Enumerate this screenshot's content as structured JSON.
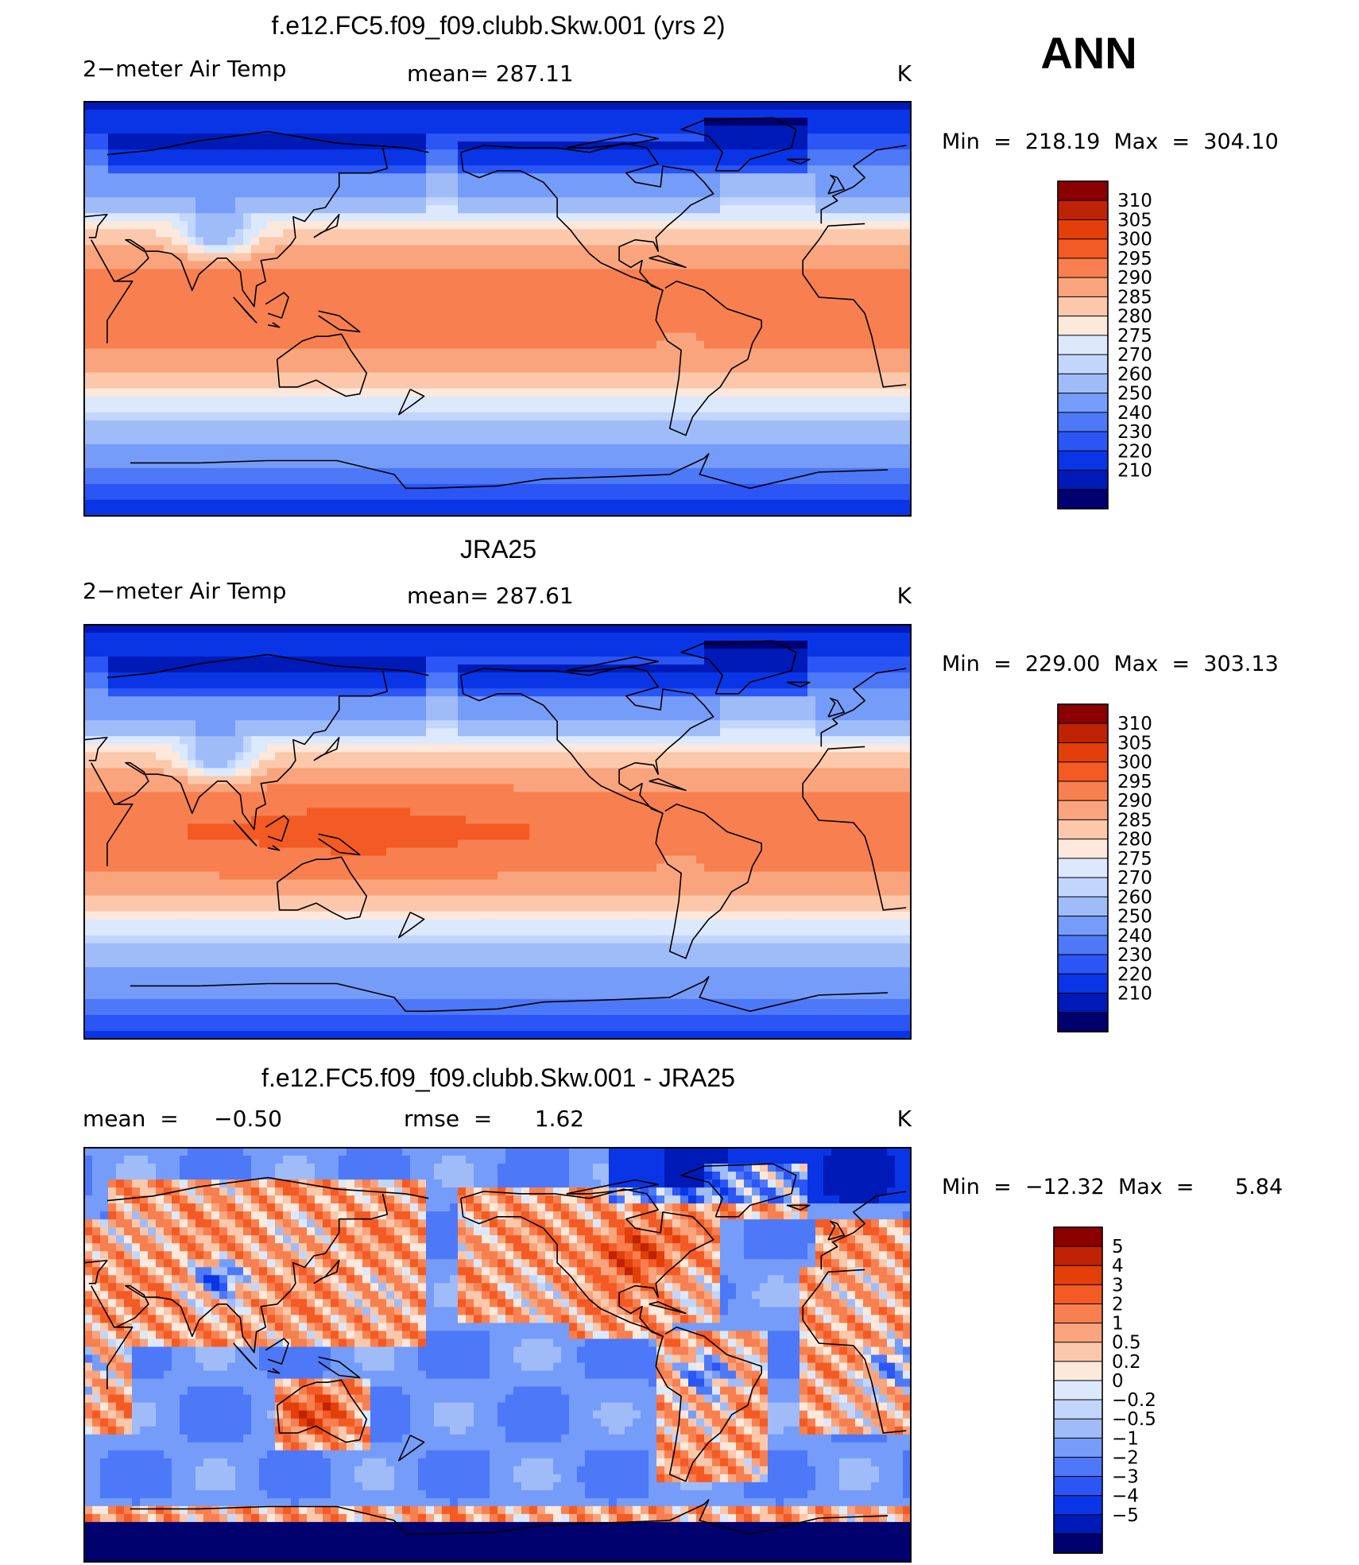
{
  "season": "ANN",
  "colors": {
    "abs_scale": [
      "#00006f",
      "#001ab8",
      "#0a35e6",
      "#2b55f5",
      "#4d78f7",
      "#759cf8",
      "#9fbcf9",
      "#c2d6fb",
      "#dce9fd",
      "#fde8dc",
      "#fbc8ac",
      "#f9a47c",
      "#f77f50",
      "#f45a24",
      "#e23f0a",
      "#bf2204",
      "#8b0000"
    ],
    "diff_scale": [
      "#00006f",
      "#001ab8",
      "#0a35e6",
      "#2b55f5",
      "#4d78f7",
      "#759cf8",
      "#9fbcf9",
      "#c2d6fb",
      "#dce9fd",
      "#fde8dc",
      "#fbc8ac",
      "#f9a47c",
      "#f77f50",
      "#f45a24",
      "#e23f0a",
      "#bf2204",
      "#8b0000"
    ]
  },
  "chart_data": [
    {
      "type": "heatmap",
      "title": "f.e12.FC5.f09_f09.clubb.Skw.001 (yrs 2)",
      "left_label": "2−meter Air Temp",
      "center_label": "mean=  287.11",
      "units": "K",
      "minmax": "Min  =  218.19  Max  =  304.10",
      "field": "model",
      "colorbar_levels": [
        "310",
        "305",
        "300",
        "295",
        "290",
        "285",
        "280",
        "275",
        "270",
        "260",
        "250",
        "240",
        "230",
        "220",
        "210"
      ]
    },
    {
      "type": "heatmap",
      "title": "JRA25",
      "left_label": "2−meter Air Temp",
      "center_label": "mean=  287.61",
      "units": "K",
      "minmax": "Min  =  229.00  Max  =  303.13",
      "field": "obs",
      "colorbar_levels": [
        "310",
        "305",
        "300",
        "295",
        "290",
        "285",
        "280",
        "275",
        "270",
        "260",
        "250",
        "240",
        "230",
        "220",
        "210"
      ]
    },
    {
      "type": "heatmap",
      "title": "f.e12.FC5.f09_f09.clubb.Skw.001 - JRA25",
      "left_label": "mean  =     −0.50",
      "center_label": "rmse  =      1.62",
      "units": "K",
      "minmax": "Min  =  −12.32  Max  =      5.84",
      "field": "diff",
      "colorbar_levels": [
        "5",
        "4",
        "3",
        "2",
        "1",
        "0.5",
        "0.2",
        "0",
        "−0.2",
        "−0.5",
        "−1",
        "−2",
        "−3",
        "−4",
        "−5"
      ]
    }
  ]
}
